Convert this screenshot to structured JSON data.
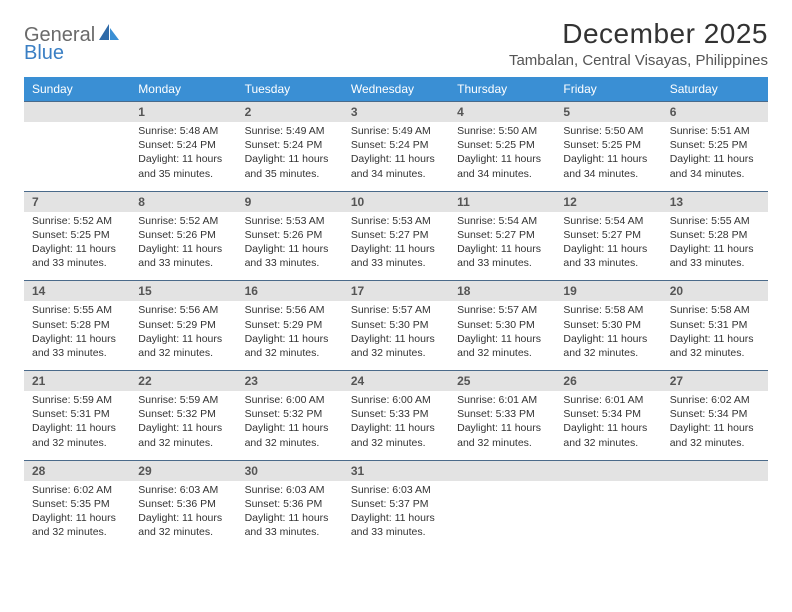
{
  "logo": {
    "word1": "General",
    "word2": "Blue"
  },
  "title": "December 2025",
  "location": "Tambalan, Central Visayas, Philippines",
  "colors": {
    "header_bg": "#3a8fd4",
    "header_text": "#ffffff",
    "daynum_bg": "#e3e3e3",
    "border": "#4a6a8a",
    "body_text": "#333333",
    "logo_gray": "#6a6a6a",
    "logo_blue": "#3a7fc4"
  },
  "fonts": {
    "family": "Arial",
    "title_size_pt": 21,
    "location_size_pt": 11,
    "dayhead_size_pt": 9,
    "daynum_size_pt": 9,
    "detail_size_pt": 8
  },
  "days_of_week": [
    "Sunday",
    "Monday",
    "Tuesday",
    "Wednesday",
    "Thursday",
    "Friday",
    "Saturday"
  ],
  "weeks": [
    [
      null,
      {
        "n": "1",
        "sunrise": "5:48 AM",
        "sunset": "5:24 PM",
        "daylight": "11 hours and 35 minutes."
      },
      {
        "n": "2",
        "sunrise": "5:49 AM",
        "sunset": "5:24 PM",
        "daylight": "11 hours and 35 minutes."
      },
      {
        "n": "3",
        "sunrise": "5:49 AM",
        "sunset": "5:24 PM",
        "daylight": "11 hours and 34 minutes."
      },
      {
        "n": "4",
        "sunrise": "5:50 AM",
        "sunset": "5:25 PM",
        "daylight": "11 hours and 34 minutes."
      },
      {
        "n": "5",
        "sunrise": "5:50 AM",
        "sunset": "5:25 PM",
        "daylight": "11 hours and 34 minutes."
      },
      {
        "n": "6",
        "sunrise": "5:51 AM",
        "sunset": "5:25 PM",
        "daylight": "11 hours and 34 minutes."
      }
    ],
    [
      {
        "n": "7",
        "sunrise": "5:52 AM",
        "sunset": "5:25 PM",
        "daylight": "11 hours and 33 minutes."
      },
      {
        "n": "8",
        "sunrise": "5:52 AM",
        "sunset": "5:26 PM",
        "daylight": "11 hours and 33 minutes."
      },
      {
        "n": "9",
        "sunrise": "5:53 AM",
        "sunset": "5:26 PM",
        "daylight": "11 hours and 33 minutes."
      },
      {
        "n": "10",
        "sunrise": "5:53 AM",
        "sunset": "5:27 PM",
        "daylight": "11 hours and 33 minutes."
      },
      {
        "n": "11",
        "sunrise": "5:54 AM",
        "sunset": "5:27 PM",
        "daylight": "11 hours and 33 minutes."
      },
      {
        "n": "12",
        "sunrise": "5:54 AM",
        "sunset": "5:27 PM",
        "daylight": "11 hours and 33 minutes."
      },
      {
        "n": "13",
        "sunrise": "5:55 AM",
        "sunset": "5:28 PM",
        "daylight": "11 hours and 33 minutes."
      }
    ],
    [
      {
        "n": "14",
        "sunrise": "5:55 AM",
        "sunset": "5:28 PM",
        "daylight": "11 hours and 33 minutes."
      },
      {
        "n": "15",
        "sunrise": "5:56 AM",
        "sunset": "5:29 PM",
        "daylight": "11 hours and 32 minutes."
      },
      {
        "n": "16",
        "sunrise": "5:56 AM",
        "sunset": "5:29 PM",
        "daylight": "11 hours and 32 minutes."
      },
      {
        "n": "17",
        "sunrise": "5:57 AM",
        "sunset": "5:30 PM",
        "daylight": "11 hours and 32 minutes."
      },
      {
        "n": "18",
        "sunrise": "5:57 AM",
        "sunset": "5:30 PM",
        "daylight": "11 hours and 32 minutes."
      },
      {
        "n": "19",
        "sunrise": "5:58 AM",
        "sunset": "5:30 PM",
        "daylight": "11 hours and 32 minutes."
      },
      {
        "n": "20",
        "sunrise": "5:58 AM",
        "sunset": "5:31 PM",
        "daylight": "11 hours and 32 minutes."
      }
    ],
    [
      {
        "n": "21",
        "sunrise": "5:59 AM",
        "sunset": "5:31 PM",
        "daylight": "11 hours and 32 minutes."
      },
      {
        "n": "22",
        "sunrise": "5:59 AM",
        "sunset": "5:32 PM",
        "daylight": "11 hours and 32 minutes."
      },
      {
        "n": "23",
        "sunrise": "6:00 AM",
        "sunset": "5:32 PM",
        "daylight": "11 hours and 32 minutes."
      },
      {
        "n": "24",
        "sunrise": "6:00 AM",
        "sunset": "5:33 PM",
        "daylight": "11 hours and 32 minutes."
      },
      {
        "n": "25",
        "sunrise": "6:01 AM",
        "sunset": "5:33 PM",
        "daylight": "11 hours and 32 minutes."
      },
      {
        "n": "26",
        "sunrise": "6:01 AM",
        "sunset": "5:34 PM",
        "daylight": "11 hours and 32 minutes."
      },
      {
        "n": "27",
        "sunrise": "6:02 AM",
        "sunset": "5:34 PM",
        "daylight": "11 hours and 32 minutes."
      }
    ],
    [
      {
        "n": "28",
        "sunrise": "6:02 AM",
        "sunset": "5:35 PM",
        "daylight": "11 hours and 32 minutes."
      },
      {
        "n": "29",
        "sunrise": "6:03 AM",
        "sunset": "5:36 PM",
        "daylight": "11 hours and 32 minutes."
      },
      {
        "n": "30",
        "sunrise": "6:03 AM",
        "sunset": "5:36 PM",
        "daylight": "11 hours and 33 minutes."
      },
      {
        "n": "31",
        "sunrise": "6:03 AM",
        "sunset": "5:37 PM",
        "daylight": "11 hours and 33 minutes."
      },
      null,
      null,
      null
    ]
  ],
  "labels": {
    "sunrise": "Sunrise:",
    "sunset": "Sunset:",
    "daylight": "Daylight:"
  }
}
